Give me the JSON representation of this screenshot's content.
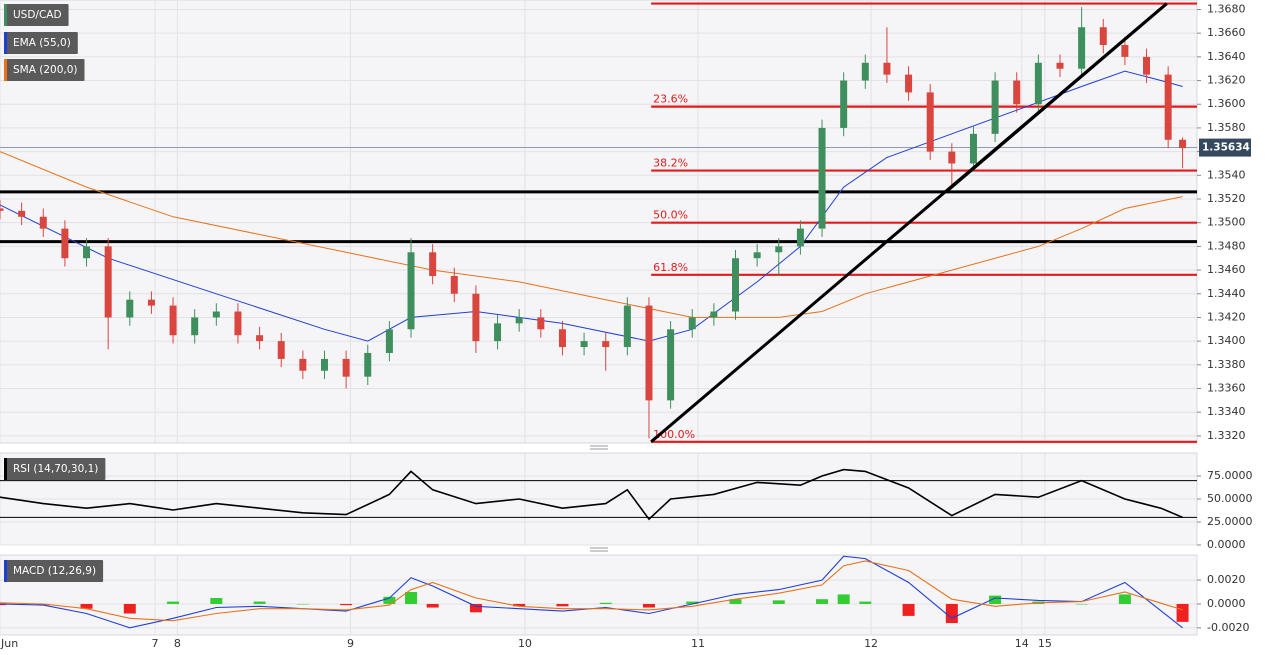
{
  "chart_data": [
    {
      "type": "candlestick",
      "title": "USD/CAD",
      "up_color": "#3f8f5e",
      "down_color": "#d9453f",
      "x": [
        0,
        3,
        6,
        9,
        12,
        15,
        18,
        21,
        24,
        27,
        30,
        33,
        36,
        39,
        42,
        45,
        48,
        51,
        54,
        57,
        60,
        63,
        66,
        69,
        72,
        75,
        78,
        81,
        84,
        87,
        90,
        93,
        96,
        99,
        102,
        105,
        108,
        111,
        114,
        117,
        120,
        123,
        126,
        129,
        132,
        135,
        138,
        141,
        144,
        147,
        150,
        153,
        156,
        159,
        162,
        164
      ],
      "open": [
        1.3512,
        1.351,
        1.3505,
        1.3495,
        1.347,
        1.348,
        1.342,
        1.3435,
        1.343,
        1.3405,
        1.342,
        1.3425,
        1.3405,
        1.34,
        1.3385,
        1.3375,
        1.3385,
        1.337,
        1.339,
        1.341,
        1.3475,
        1.3455,
        1.344,
        1.34,
        1.3415,
        1.342,
        1.341,
        1.3395,
        1.34,
        1.3395,
        1.343,
        1.335,
        1.341,
        1.342,
        1.3425,
        1.347,
        1.3475,
        1.348,
        1.3495,
        1.358,
        1.362,
        1.3635,
        1.3625,
        1.361,
        1.356,
        1.355,
        1.3575,
        1.362,
        1.36,
        1.3635,
        1.363,
        1.3665,
        1.365,
        1.364,
        1.3625,
        1.357
      ],
      "high": [
        1.3519,
        1.3517,
        1.3512,
        1.3502,
        1.3487,
        1.3487,
        1.3442,
        1.3442,
        1.3437,
        1.3427,
        1.3432,
        1.3432,
        1.3412,
        1.3407,
        1.3392,
        1.3392,
        1.3392,
        1.3397,
        1.3417,
        1.3487,
        1.3482,
        1.3462,
        1.3447,
        1.3422,
        1.3427,
        1.3427,
        1.3417,
        1.3407,
        1.3407,
        1.3437,
        1.3437,
        1.3417,
        1.3427,
        1.3432,
        1.3477,
        1.3482,
        1.3487,
        1.3502,
        1.3587,
        1.3627,
        1.3642,
        1.3665,
        1.3632,
        1.3617,
        1.3567,
        1.3582,
        1.3627,
        1.3627,
        1.3642,
        1.3642,
        1.3682,
        1.3672,
        1.3657,
        1.3647,
        1.3632,
        1.3572
      ],
      "low": [
        1.3503,
        1.3498,
        1.3488,
        1.3463,
        1.3463,
        1.3393,
        1.3413,
        1.3423,
        1.3398,
        1.3398,
        1.3413,
        1.3398,
        1.3393,
        1.3378,
        1.3368,
        1.3368,
        1.336,
        1.3363,
        1.3383,
        1.3403,
        1.3448,
        1.3433,
        1.339,
        1.3393,
        1.3408,
        1.3403,
        1.3388,
        1.3388,
        1.3375,
        1.3388,
        1.3318,
        1.3343,
        1.3403,
        1.3413,
        1.3418,
        1.3463,
        1.3455,
        1.3473,
        1.3488,
        1.3573,
        1.3613,
        1.3618,
        1.3603,
        1.3553,
        1.353,
        1.3543,
        1.3568,
        1.3593,
        1.3593,
        1.3623,
        1.3623,
        1.3643,
        1.3633,
        1.3618,
        1.3563,
        1.3546
      ],
      "close": [
        1.351,
        1.3505,
        1.3495,
        1.347,
        1.348,
        1.342,
        1.3435,
        1.343,
        1.3405,
        1.342,
        1.3425,
        1.3405,
        1.34,
        1.3385,
        1.3375,
        1.3385,
        1.337,
        1.339,
        1.341,
        1.3475,
        1.3455,
        1.344,
        1.34,
        1.3415,
        1.342,
        1.341,
        1.3395,
        1.34,
        1.3395,
        1.343,
        1.335,
        1.341,
        1.342,
        1.3425,
        1.347,
        1.3475,
        1.348,
        1.3495,
        1.358,
        1.362,
        1.3635,
        1.3625,
        1.361,
        1.356,
        1.355,
        1.3575,
        1.362,
        1.36,
        1.3635,
        1.363,
        1.3665,
        1.365,
        1.364,
        1.3625,
        1.357,
        1.3563
      ],
      "overlays": [
        {
          "name": "EMA (55,0)",
          "color": "#1f3fd6",
          "x": [
            0,
            15,
            30,
            45,
            51,
            57,
            66,
            78,
            90,
            96,
            105,
            111,
            117,
            123,
            132,
            141,
            150,
            156,
            161,
            164
          ],
          "values": [
            1.3515,
            1.347,
            1.344,
            1.341,
            1.34,
            1.342,
            1.3425,
            1.3415,
            1.34,
            1.341,
            1.345,
            1.348,
            1.353,
            1.3555,
            1.3575,
            1.3595,
            1.3615,
            1.3628,
            1.362,
            1.3615
          ]
        },
        {
          "name": "SMA (200,0)",
          "color": "#e8731c",
          "x": [
            0,
            12,
            24,
            36,
            48,
            60,
            72,
            84,
            96,
            108,
            114,
            120,
            132,
            144,
            150,
            156,
            164
          ],
          "values": [
            1.356,
            1.353,
            1.3505,
            1.349,
            1.3475,
            1.346,
            1.345,
            1.3435,
            1.342,
            1.342,
            1.3425,
            1.344,
            1.346,
            1.348,
            1.3495,
            1.3512,
            1.3522
          ]
        }
      ],
      "fib_x": 90.3,
      "fib_levels": [
        {
          "value": 1.3685
        },
        {
          "value": 1.3598,
          "label": "23.6%"
        },
        {
          "value": 1.3544,
          "label": "38.2%"
        },
        {
          "value": 1.35,
          "label": "50.0%"
        },
        {
          "value": 1.3456,
          "label": "61.8%"
        },
        {
          "value": 1.3315,
          "label": "100.0%"
        }
      ],
      "fib_color": "#e41a1a",
      "support_lines": [
        1.3526,
        1.3484
      ],
      "trendlines": [
        {
          "x": [
            90.3,
            161.8
          ],
          "values": [
            1.3315,
            1.3685
          ]
        },
        {
          "x": [
            131.2,
            161.8
          ],
          "values": [
            1.3526,
            1.3685
          ]
        }
      ],
      "last_price": 1.35634,
      "xlim": [
        0,
        166
      ],
      "ylim": [
        1.3314,
        1.3688
      ],
      "yticks": [
        {
          "value": 1.332,
          "label": "1.3320"
        },
        {
          "value": 1.334,
          "label": "1.3340"
        },
        {
          "value": 1.336,
          "label": "1.3360"
        },
        {
          "value": 1.338,
          "label": "1.3380"
        },
        {
          "value": 1.34,
          "label": "1.3400"
        },
        {
          "value": 1.342,
          "label": "1.3420"
        },
        {
          "value": 1.344,
          "label": "1.3440"
        },
        {
          "value": 1.346,
          "label": "1.3460"
        },
        {
          "value": 1.348,
          "label": "1.3480"
        },
        {
          "value": 1.35,
          "label": "1.3500"
        },
        {
          "value": 1.352,
          "label": "1.3520"
        },
        {
          "value": 1.354,
          "label": "1.3540"
        },
        {
          "value": 1.356,
          "label": "1.3560"
        },
        {
          "value": 1.358,
          "label": "1.3580"
        },
        {
          "value": 1.36,
          "label": "1.3600"
        },
        {
          "value": 1.362,
          "label": "1.3620"
        },
        {
          "value": 1.364,
          "label": "1.3640"
        },
        {
          "value": 1.366,
          "label": "1.3660"
        },
        {
          "value": 1.368,
          "label": "1.3680"
        }
      ],
      "grid": true
    },
    {
      "type": "line",
      "title": "RSI (14,70,30,1)",
      "series": [
        {
          "color": "#000000",
          "x": [
            0,
            6,
            12,
            18,
            24,
            30,
            36,
            42,
            48,
            54,
            57,
            60,
            66,
            72,
            78,
            84,
            87,
            90,
            93,
            99,
            105,
            111,
            114,
            117,
            120,
            126,
            132,
            138,
            144,
            150,
            156,
            161,
            164
          ],
          "values": [
            52,
            45,
            40,
            45,
            38,
            45,
            40,
            35,
            33,
            55,
            80,
            60,
            45,
            50,
            40,
            45,
            60,
            28,
            50,
            55,
            68,
            65,
            75,
            82,
            80,
            62,
            32,
            55,
            52,
            70,
            50,
            40,
            30
          ]
        }
      ],
      "bands": [
        70,
        30
      ],
      "xlim": [
        0,
        166
      ],
      "ylim": [
        0,
        100
      ],
      "yticks": [
        {
          "value": 75,
          "label": "75.0000"
        },
        {
          "value": 50,
          "label": "50.0000"
        },
        {
          "value": 25,
          "label": "25.0000"
        },
        {
          "value": 0,
          "label": "0.0000"
        }
      ],
      "grid": true
    },
    {
      "type": "macd",
      "title": "MACD (12,26,9)",
      "x": [
        0,
        6,
        12,
        18,
        24,
        30,
        36,
        42,
        48,
        54,
        57,
        60,
        66,
        72,
        78,
        84,
        90,
        96,
        102,
        108,
        114,
        117,
        120,
        126,
        132,
        138,
        144,
        150,
        156,
        164
      ],
      "series": [
        {
          "color": "#1f3fd6",
          "values": [
            0,
            -0.0001,
            -0.0008,
            -0.002,
            -0.0012,
            -0.0003,
            -0.0002,
            -0.0004,
            -0.0006,
            0.0005,
            0.0022,
            0.0015,
            -0.0002,
            -0.0004,
            -0.0006,
            -0.0003,
            -0.0008,
            0,
            0.0008,
            0.0012,
            0.002,
            0.004,
            0.0038,
            0.0018,
            -0.0012,
            0.0005,
            0.0003,
            0.0002,
            0.0018,
            -0.002
          ]
        },
        {
          "color": "#e8731c",
          "values": [
            0.0001,
            0,
            -0.0004,
            -0.0012,
            -0.0014,
            -0.0008,
            -0.0004,
            -0.0004,
            -0.0005,
            -0.0001,
            0.0012,
            0.0018,
            0.0005,
            -0.0002,
            -0.0004,
            -0.0004,
            -0.0005,
            -0.0002,
            0.0004,
            0.0009,
            0.0016,
            0.0032,
            0.0036,
            0.0028,
            0.0004,
            -0.0002,
            0.0001,
            0.0002,
            0.001,
            -0.0005
          ]
        }
      ],
      "histogram": [
        -0.0001,
        -0.0001,
        -0.0004,
        -0.0008,
        0.0002,
        0.0005,
        0.0002,
        0,
        -0.0001,
        0.0006,
        0.001,
        -0.0003,
        -0.0007,
        -0.0002,
        -0.0002,
        0.0001,
        -0.0003,
        0.0002,
        0.0004,
        0.0003,
        0.0004,
        0.0008,
        0.0002,
        -0.001,
        -0.0016,
        0.0007,
        0.0002,
        0,
        0.0008,
        -0.0015
      ],
      "pos_color": "#33cc33",
      "neg_color": "#ee2020",
      "xlim": [
        0,
        166
      ],
      "ylim": [
        -0.0026,
        0.0041
      ],
      "yticks": [
        {
          "value": 0.002,
          "label": "0.0020"
        },
        {
          "value": 0,
          "label": "0.0000"
        },
        {
          "value": -0.002,
          "label": "-0.0020"
        }
      ],
      "xticks": [
        {
          "value": 0,
          "label": "Jun"
        },
        {
          "value": 21.5,
          "label": "7"
        },
        {
          "value": 24.6,
          "label": "8"
        },
        {
          "value": 48.6,
          "label": "9"
        },
        {
          "value": 72.8,
          "label": "10"
        },
        {
          "value": 96.8,
          "label": "11"
        },
        {
          "value": 120.8,
          "label": "12"
        },
        {
          "value": 141.7,
          "label": "14"
        },
        {
          "value": 144.9,
          "label": "15"
        }
      ],
      "grid": true
    }
  ]
}
